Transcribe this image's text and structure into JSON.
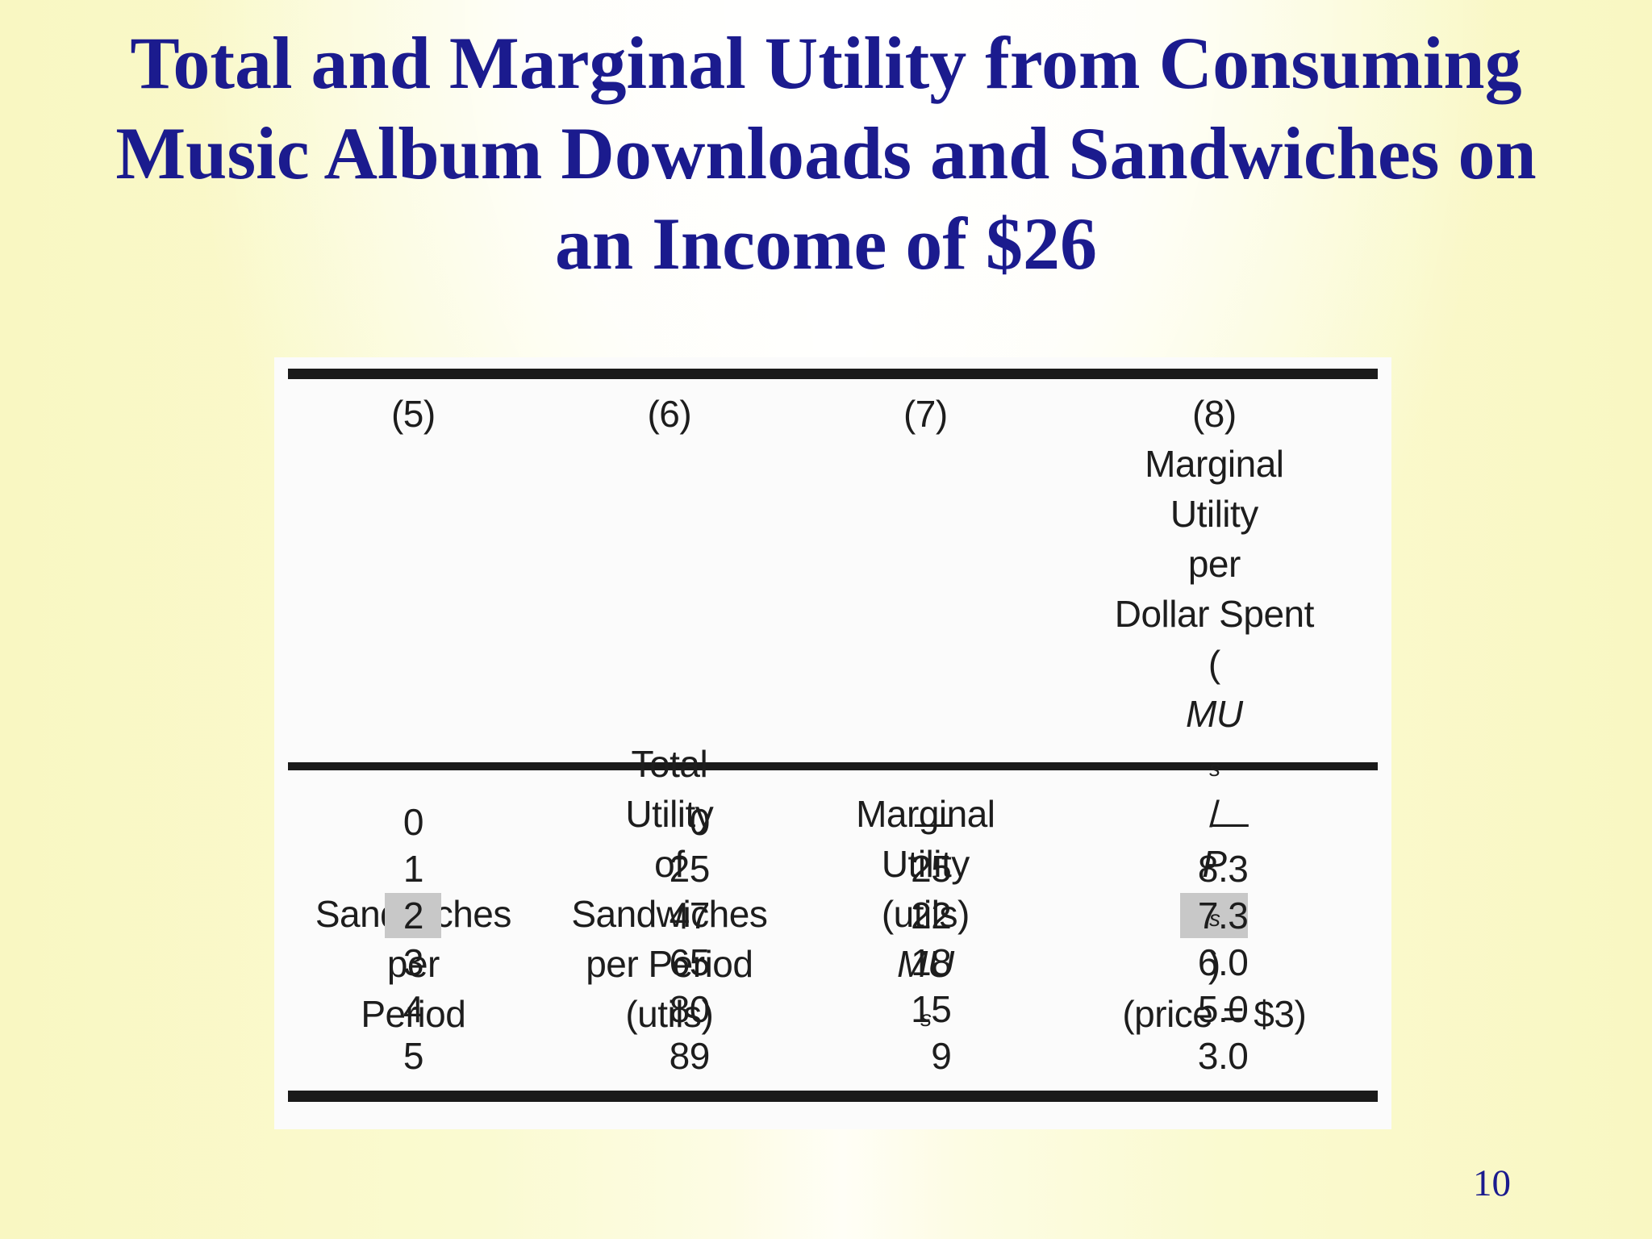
{
  "slide": {
    "title_lines": [
      "Total and Marginal Utility from Consuming",
      "Music Album Downloads and Sandwiches on",
      "an Income of $26"
    ],
    "page_number": "10",
    "colors": {
      "title_navy": "#1b1b8e",
      "background_yellow": "#f9f7c2",
      "background_white": "#ffffff",
      "table_background": "#fbfbfb",
      "table_text": "#1d1d1d",
      "table_rule": "#1a1a1a",
      "highlight_gray": "#c8c8c8"
    }
  },
  "table": {
    "columns": [
      {
        "number": "(5)",
        "header_lines": [
          "Sandwiches",
          "per",
          "Period"
        ]
      },
      {
        "number": "(6)",
        "header_lines": [
          "Total",
          "Utility",
          "of",
          "Sandwiches",
          "per Period",
          "(utils)"
        ]
      },
      {
        "number": "(7)",
        "header_lines": [
          "Marginal",
          "Utility",
          "(utils)"
        ],
        "formula": {
          "var": "MU",
          "sub": "s"
        }
      },
      {
        "number": "(8)",
        "header_lines": [
          "Marginal",
          "Utility",
          "per",
          "Dollar Spent"
        ],
        "formula": {
          "open": "(",
          "var1": "MU",
          "sub1": "s",
          "slash": "/",
          "var2": "P",
          "sub2": "s",
          "close": ")"
        },
        "price_line": "(price = $3)"
      }
    ],
    "rows": [
      {
        "cells": [
          "0",
          "0",
          "—",
          "—"
        ]
      },
      {
        "cells": [
          "1",
          "25",
          "25",
          "8.3"
        ]
      },
      {
        "cells": [
          "2",
          "47",
          "22",
          "7.3"
        ]
      },
      {
        "cells": [
          "3",
          "65",
          "18",
          "6.0"
        ]
      },
      {
        "cells": [
          "4",
          "80",
          "15",
          "5.0"
        ]
      },
      {
        "cells": [
          "5",
          "89",
          "9",
          "3.0"
        ]
      }
    ],
    "highlighted_cells": [
      {
        "row": 2,
        "col": 0,
        "value": "2"
      },
      {
        "row": 2,
        "col": 3,
        "value": "7.3"
      }
    ]
  },
  "chart_data": {
    "type": "table",
    "title": "Total and Marginal Utility from Consuming Music Album Downloads and Sandwiches on an Income of $26",
    "columns": [
      "(5) Sandwiches per Period",
      "(6) Total Utility of Sandwiches per Period (utils)",
      "(7) Marginal Utility (utils) MUs",
      "(8) Marginal Utility per Dollar Spent (MUs/Ps) (price = $3)"
    ],
    "rows": [
      [
        0,
        0,
        null,
        null
      ],
      [
        1,
        25,
        25,
        8.3
      ],
      [
        2,
        47,
        22,
        7.3
      ],
      [
        3,
        65,
        18,
        6.0
      ],
      [
        4,
        80,
        15,
        5.0
      ],
      [
        5,
        89,
        9,
        3.0
      ]
    ]
  }
}
